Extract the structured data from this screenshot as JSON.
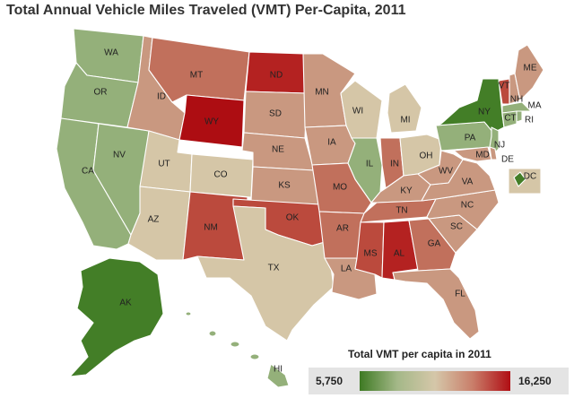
{
  "title": "Total Annual Vehicle Miles Traveled (VMT) Per-Capita, 2011",
  "legend": {
    "title": "Total VMT per capita in 2011",
    "min_label": "5,750",
    "max_label": "16,250",
    "colors": [
      "#3e7a23",
      "#a4b888",
      "#d5c7a9",
      "#c97e6a",
      "#b00e14"
    ]
  },
  "colors": {
    "green_dark": "#437e27",
    "green": "#94b07a",
    "tan": "#d5c6a7",
    "peach": "#c99880",
    "rose": "#c1705c",
    "red_med": "#bb4a3d",
    "red_dark": "#b42221",
    "red_deep": "#ad0d12"
  },
  "states": {
    "WA": {
      "label": "WA",
      "color": "#94b07a"
    },
    "OR": {
      "label": "OR",
      "color": "#94b07a"
    },
    "CA": {
      "label": "CA",
      "color": "#94b07a"
    },
    "NV": {
      "label": "NV",
      "color": "#94b07a"
    },
    "ID": {
      "label": "ID",
      "color": "#c99880"
    },
    "MT": {
      "label": "MT",
      "color": "#c1705c"
    },
    "WY": {
      "label": "WY",
      "color": "#ad0d12"
    },
    "UT": {
      "label": "UT",
      "color": "#d5c6a7"
    },
    "AZ": {
      "label": "AZ",
      "color": "#d5c6a7"
    },
    "CO": {
      "label": "CO",
      "color": "#d5c6a7"
    },
    "NM": {
      "label": "NM",
      "color": "#bb4a3d"
    },
    "ND": {
      "label": "ND",
      "color": "#b42221"
    },
    "SD": {
      "label": "SD",
      "color": "#c99880"
    },
    "NE": {
      "label": "NE",
      "color": "#c99880"
    },
    "KS": {
      "label": "KS",
      "color": "#c99880"
    },
    "OK": {
      "label": "OK",
      "color": "#bb4a3d"
    },
    "TX": {
      "label": "TX",
      "color": "#d5c6a7"
    },
    "MN": {
      "label": "MN",
      "color": "#c99880"
    },
    "IA": {
      "label": "IA",
      "color": "#c99880"
    },
    "MO": {
      "label": "MO",
      "color": "#c1705c"
    },
    "AR": {
      "label": "AR",
      "color": "#c1705c"
    },
    "LA": {
      "label": "LA",
      "color": "#c99880"
    },
    "WI": {
      "label": "WI",
      "color": "#d5c6a7"
    },
    "IL": {
      "label": "IL",
      "color": "#94b07a"
    },
    "MI": {
      "label": "MI",
      "color": "#d5c6a7"
    },
    "IN": {
      "label": "IN",
      "color": "#c1705c"
    },
    "OH": {
      "label": "OH",
      "color": "#d5c6a7"
    },
    "KY": {
      "label": "KY",
      "color": "#c99880"
    },
    "TN": {
      "label": "TN",
      "color": "#c1705c"
    },
    "MS": {
      "label": "MS",
      "color": "#bb4a3d"
    },
    "AL": {
      "label": "AL",
      "color": "#b42221"
    },
    "GA": {
      "label": "GA",
      "color": "#c1705c"
    },
    "FL": {
      "label": "FL",
      "color": "#c99880"
    },
    "SC": {
      "label": "SC",
      "color": "#c99880"
    },
    "NC": {
      "label": "NC",
      "color": "#c99880"
    },
    "VA": {
      "label": "VA",
      "color": "#c99880"
    },
    "WV": {
      "label": "WV",
      "color": "#c99880"
    },
    "PA": {
      "label": "PA",
      "color": "#94b07a"
    },
    "NY": {
      "label": "NY",
      "color": "#437e27"
    },
    "VT": {
      "label": "VT",
      "color": "#bb4a3d"
    },
    "NH": {
      "label": "NH",
      "color": "#c99880"
    },
    "ME": {
      "label": "ME",
      "color": "#c99880"
    },
    "MA": {
      "label": "MA",
      "color": "#94b07a"
    },
    "CT": {
      "label": "CT",
      "color": "#94b07a"
    },
    "RI": {
      "label": "RI",
      "color": "#94b07a"
    },
    "NJ": {
      "label": "NJ",
      "color": "#94b07a"
    },
    "DE": {
      "label": "DE",
      "color": "#c99880"
    },
    "MD": {
      "label": "MD",
      "color": "#c99880"
    },
    "DC": {
      "label": "DC",
      "color": "#437e27"
    },
    "AK": {
      "label": "AK",
      "color": "#437e27"
    },
    "HI": {
      "label": "HI",
      "color": "#94b07a"
    }
  }
}
